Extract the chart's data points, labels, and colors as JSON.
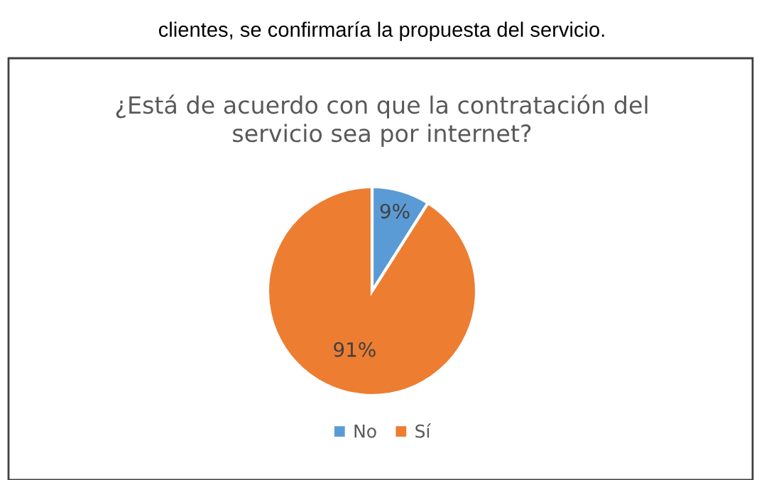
{
  "chart_data": {
    "type": "pie",
    "title": "¿Está de acuerdo con que la contratación del\nservicio sea por internet?",
    "categories": [
      "No",
      "Sí"
    ],
    "values": [
      9,
      91
    ],
    "colors": [
      "#5b9bd5",
      "#ed7d31"
    ],
    "value_labels": [
      "9%",
      "91%"
    ],
    "legend": "bottom",
    "annotations": [
      "clientes, se confirmaría la propuesta del servicio."
    ]
  }
}
